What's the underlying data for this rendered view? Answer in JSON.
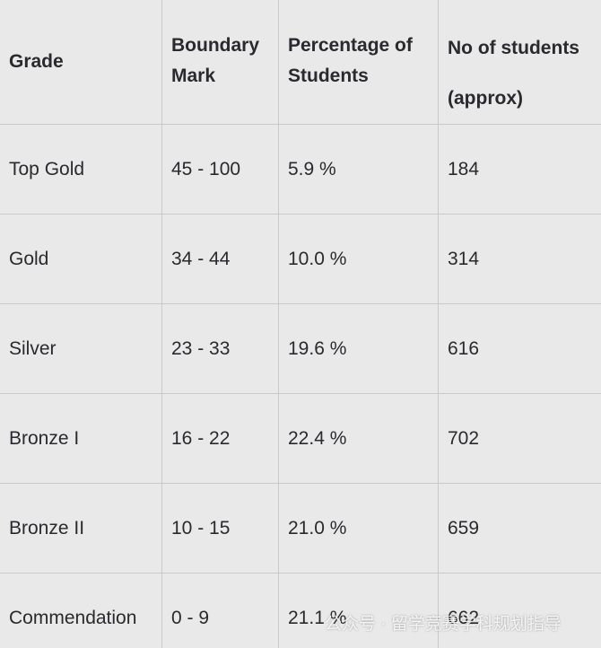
{
  "table": {
    "header": [
      "Grade",
      "Boundary Mark",
      "Percentage of Students",
      "No of students (approx)"
    ],
    "rows": [
      [
        "Top Gold",
        "45 - 100",
        "5.9 %",
        "184"
      ],
      [
        "Gold",
        "34 - 44",
        "10.0 %",
        "314"
      ],
      [
        "Silver",
        "23 - 33",
        "19.6 %",
        "616"
      ],
      [
        "Bronze I",
        "16 - 22",
        "22.4 %",
        "702"
      ],
      [
        "Bronze II",
        "10 - 15",
        "21.0 %",
        "659"
      ],
      [
        "Commendation",
        "0 - 9",
        "21.1 %",
        "662"
      ]
    ]
  },
  "watermark": "公众号 · 留学竞赛学科规划指导"
}
